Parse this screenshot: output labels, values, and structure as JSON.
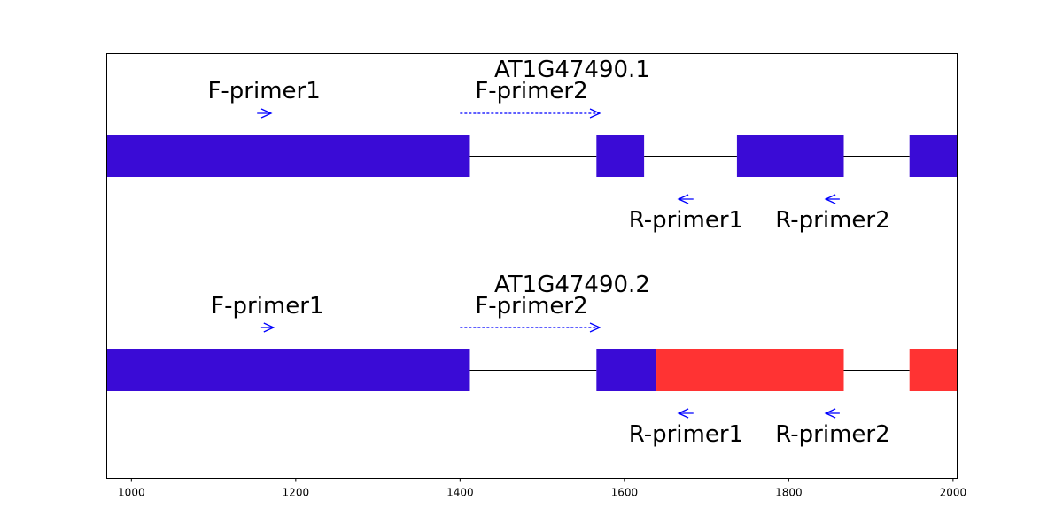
{
  "chart_data": {
    "type": "gene-structure",
    "xlim": [
      970,
      2005
    ],
    "x_ticks": [
      {
        "value": 1000,
        "label": "1000"
      },
      {
        "value": 1200,
        "label": "1200"
      },
      {
        "value": 1400,
        "label": "1400"
      },
      {
        "value": 1600,
        "label": "1600"
      },
      {
        "value": 1800,
        "label": "1800"
      },
      {
        "value": 2000,
        "label": "2000"
      }
    ],
    "colors": {
      "exon": "#3a0bd6",
      "alt_exon": "#ff3333",
      "primer": "#0000ff",
      "intron": "#000000"
    },
    "transcripts": [
      {
        "name": "AT1G47490.1",
        "exons": [
          {
            "start": 970,
            "end": 1412,
            "color": "#3a0bd6"
          },
          {
            "start": 1566,
            "end": 1624,
            "color": "#3a0bd6"
          },
          {
            "start": 1737,
            "end": 1867,
            "color": "#3a0bd6"
          },
          {
            "start": 1947,
            "end": 2005,
            "color": "#3a0bd6"
          }
        ],
        "forward_primers": [
          {
            "label": "F-primer1",
            "start": 1153,
            "end": 1170,
            "style": "solid"
          },
          {
            "label": "F-primer2",
            "start": 1400,
            "end": 1570,
            "style": "dashed"
          }
        ],
        "reverse_primers": [
          {
            "label": "R-primer1",
            "start": 1666,
            "end": 1684
          },
          {
            "label": "R-primer2",
            "start": 1845,
            "end": 1862
          }
        ]
      },
      {
        "name": "AT1G47490.2",
        "exons": [
          {
            "start": 970,
            "end": 1412,
            "color": "#3a0bd6"
          },
          {
            "start": 1566,
            "end": 1639,
            "color": "#3a0bd6"
          },
          {
            "start": 1639,
            "end": 1867,
            "color": "#ff3333"
          },
          {
            "start": 1947,
            "end": 2005,
            "color": "#ff3333"
          }
        ],
        "forward_primers": [
          {
            "label": "F-primer1",
            "start": 1158,
            "end": 1173,
            "style": "solid"
          },
          {
            "label": "F-primer2",
            "start": 1400,
            "end": 1570,
            "style": "dashed"
          }
        ],
        "reverse_primers": [
          {
            "label": "R-primer1",
            "start": 1666,
            "end": 1684
          },
          {
            "label": "R-primer2",
            "start": 1845,
            "end": 1862
          }
        ]
      }
    ]
  }
}
